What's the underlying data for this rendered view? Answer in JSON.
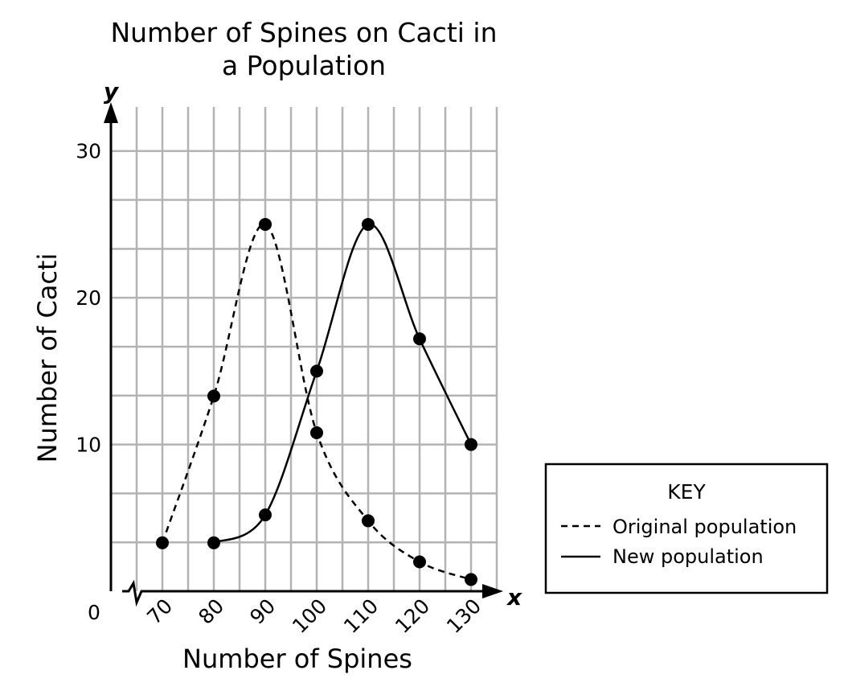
{
  "chart_data": {
    "type": "line",
    "title_lines": [
      "Number of Spines on Cacti in",
      "a Population"
    ],
    "xlabel": "Number of Spines",
    "ylabel": "Number of Cacti",
    "x_var": "x",
    "y_var": "y",
    "origin_label": "0",
    "xlim": [
      60,
      135
    ],
    "ylim": [
      0,
      33
    ],
    "x_ticks": [
      70,
      80,
      90,
      100,
      110,
      120,
      130
    ],
    "x_tick_labels": [
      "70",
      "80",
      "90",
      "100",
      "110",
      "120",
      "130"
    ],
    "y_ticks": [
      10,
      20,
      30
    ],
    "y_tick_labels": [
      "10",
      "20",
      "30"
    ],
    "grid": true,
    "x_axis_break": true,
    "legend": {
      "title": "KEY",
      "placement": "right",
      "entries": [
        {
          "label": "Original population",
          "style": "dashed"
        },
        {
          "label": "New population",
          "style": "solid"
        }
      ]
    },
    "series": [
      {
        "name": "Original population",
        "style": "dashed",
        "x": [
          70,
          80,
          90,
          100,
          110,
          120,
          130
        ],
        "y": [
          3.3,
          13.3,
          25,
          10.8,
          4.8,
          2.0,
          0.8
        ]
      },
      {
        "name": "New population",
        "style": "solid",
        "x": [
          80,
          90,
          100,
          110,
          120,
          130
        ],
        "y": [
          3.3,
          5.2,
          15,
          25,
          17.2,
          10
        ]
      }
    ],
    "colors": {
      "grid": "#b3b3b3",
      "ink": "#000000"
    }
  }
}
